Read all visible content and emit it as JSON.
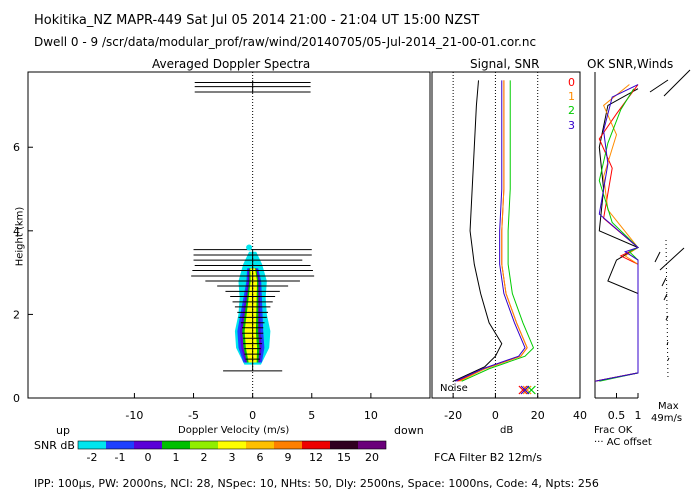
{
  "header": {
    "line1": "Hokitika_NZ  MAPR-449  Sat Jul 05 2014 21:00 - 21:04 UT 15:00 NZST",
    "line2": "Dwell  0 - 9   /scr/data/modular_prof/raw/wind/20140705/05-Jul-2014_21-00-01.cor.nc"
  },
  "footer": {
    "params": "IPP: 100μs,  PW: 2000ns,  NCI: 28,  NSpec: 10, NHts: 50,  Dly: 2500ns,  Space: 1000ns,  Code: 4,  Npts: 256",
    "filter": "FCA Filter B2 12m/s"
  },
  "chart_data": [
    {
      "type": "heatmap",
      "title": "Averaged Doppler Spectra",
      "xlabel": "Doppler Velocity (m/s)",
      "ylabel": "Height (km)",
      "xlim": [
        -19,
        15
      ],
      "ylim": [
        0,
        7.8
      ],
      "x_ticks": [
        -10,
        -5,
        0,
        5,
        10
      ],
      "y_ticks": [
        0,
        2,
        4,
        6
      ],
      "left_label": "up",
      "right_label": "down",
      "colorbar_label": "SNR dB",
      "colorbar_levels": [
        "-2",
        "-1",
        "0",
        "1",
        "2",
        "3",
        "6",
        "9",
        "12",
        "15",
        "20"
      ],
      "colorbar_colors": [
        "#00e5ee",
        "#1f3fff",
        "#5a00d8",
        "#00c000",
        "#90ee00",
        "#ffff00",
        "#ffc000",
        "#ff7f00",
        "#ee0000",
        "#300020",
        "#6a007a"
      ],
      "spectra_core": [
        {
          "h": 0.85,
          "center": 0.0,
          "halfwidth": 0.5
        },
        {
          "h": 1.2,
          "center": -0.1,
          "halfwidth": 0.7
        },
        {
          "h": 1.6,
          "center": -0.2,
          "halfwidth": 0.7
        },
        {
          "h": 2.0,
          "center": -0.1,
          "halfwidth": 0.6
        },
        {
          "h": 2.4,
          "center": 0.0,
          "halfwidth": 0.5
        },
        {
          "h": 2.8,
          "center": 0.1,
          "halfwidth": 0.4
        },
        {
          "h": 3.1,
          "center": 0.0,
          "halfwidth": 0.3
        }
      ],
      "spectra_outer": [
        {
          "h": 0.8,
          "halfwidth": 0.7
        },
        {
          "h": 1.2,
          "halfwidth": 1.4
        },
        {
          "h": 1.6,
          "halfwidth": 1.5
        },
        {
          "h": 2.0,
          "halfwidth": 1.2
        },
        {
          "h": 2.4,
          "halfwidth": 1.1
        },
        {
          "h": 2.8,
          "halfwidth": 1.2
        },
        {
          "h": 3.2,
          "halfwidth": 0.8
        },
        {
          "h": 3.5,
          "halfwidth": 0.3
        }
      ],
      "errorbars": [
        {
          "h": 7.55,
          "x": 0.0,
          "half": 4.9
        },
        {
          "h": 7.45,
          "x": 0.0,
          "half": 4.9
        },
        {
          "h": 7.32,
          "x": 0.0,
          "half": 4.9
        },
        {
          "h": 3.55,
          "x": 0.0,
          "half": 5.0
        },
        {
          "h": 3.42,
          "x": 0.0,
          "half": 5.0
        },
        {
          "h": 3.3,
          "x": -0.4,
          "half": 4.6
        },
        {
          "h": 3.17,
          "x": 0.0,
          "half": 4.9
        },
        {
          "h": 3.05,
          "x": 0.0,
          "half": 5.1
        },
        {
          "h": 2.92,
          "x": 0.0,
          "half": 5.2
        },
        {
          "h": 2.8,
          "x": 0.0,
          "half": 4.0
        },
        {
          "h": 2.68,
          "x": 0.0,
          "half": 3.0
        },
        {
          "h": 2.55,
          "x": 0.0,
          "half": 2.3
        },
        {
          "h": 2.43,
          "x": 0.0,
          "half": 1.9
        },
        {
          "h": 2.3,
          "x": 0.0,
          "half": 1.7
        },
        {
          "h": 2.18,
          "x": 0.0,
          "half": 1.5
        },
        {
          "h": 2.05,
          "x": 0.0,
          "half": 1.3
        },
        {
          "h": 1.93,
          "x": 0.0,
          "half": 1.2
        },
        {
          "h": 1.8,
          "x": 0.0,
          "half": 1.0
        },
        {
          "h": 1.68,
          "x": 0.0,
          "half": 0.9
        },
        {
          "h": 1.55,
          "x": 0.0,
          "half": 0.9
        },
        {
          "h": 1.43,
          "x": 0.0,
          "half": 0.8
        },
        {
          "h": 1.3,
          "x": 0.0,
          "half": 0.8
        },
        {
          "h": 1.18,
          "x": 0.0,
          "half": 0.7
        },
        {
          "h": 1.05,
          "x": 0.0,
          "half": 0.7
        },
        {
          "h": 0.93,
          "x": 0.0,
          "half": 0.6
        },
        {
          "h": 0.65,
          "x": 0.0,
          "half": 2.5
        }
      ],
      "peak_marker": {
        "x": -0.3,
        "h": 3.6
      }
    },
    {
      "type": "line",
      "title": "Signal, SNR",
      "xlabel": "dB",
      "xlim": [
        -30,
        40
      ],
      "ylim": [
        0,
        7.8
      ],
      "x_ticks": [
        -20,
        0,
        20,
        40
      ],
      "dotted_x": [
        -20,
        0,
        20
      ],
      "noise_label": "Noise",
      "series": [
        {
          "color": "#000000",
          "points": [
            [
              -20,
              0.4
            ],
            [
              -5,
              0.75
            ],
            [
              0,
              1.0
            ],
            [
              3,
              1.3
            ],
            [
              -3,
              1.8
            ],
            [
              -7,
              2.5
            ],
            [
              -10,
              3.2
            ],
            [
              -12,
              4.0
            ],
            [
              -11,
              5.0
            ],
            [
              -10,
              6.0
            ],
            [
              -9,
              7.0
            ],
            [
              -8,
              7.6
            ]
          ]
        },
        {
          "color": "#ff0000",
          "points": [
            [
              -18,
              0.4
            ],
            [
              -5,
              0.7
            ],
            [
              12,
              1.0
            ],
            [
              15,
              1.2
            ],
            [
              10,
              1.8
            ],
            [
              5,
              2.5
            ],
            [
              3,
              3.2
            ],
            [
              3,
              4.0
            ],
            [
              4,
              5.0
            ],
            [
              4,
              6.0
            ],
            [
              4,
              7.0
            ],
            [
              4,
              7.6
            ]
          ]
        },
        {
          "color": "#ff8c00",
          "points": [
            [
              -17,
              0.4
            ],
            [
              -5,
              0.7
            ],
            [
              12,
              1.0
            ],
            [
              15,
              1.2
            ],
            [
              10,
              1.8
            ],
            [
              5,
              2.5
            ],
            [
              3,
              3.2
            ],
            [
              3,
              4.0
            ],
            [
              4,
              5.0
            ],
            [
              4,
              6.0
            ],
            [
              4,
              7.0
            ],
            [
              4,
              7.6
            ]
          ]
        },
        {
          "color": "#00cc00",
          "points": [
            [
              -16,
              0.4
            ],
            [
              -3,
              0.7
            ],
            [
              14,
              1.0
            ],
            [
              18,
              1.2
            ],
            [
              13,
              1.8
            ],
            [
              8,
              2.5
            ],
            [
              6,
              3.2
            ],
            [
              6,
              4.0
            ],
            [
              7,
              5.0
            ],
            [
              7,
              6.0
            ],
            [
              7,
              7.0
            ],
            [
              7,
              7.6
            ]
          ]
        },
        {
          "color": "#3300cc",
          "points": [
            [
              -19,
              0.4
            ],
            [
              -6,
              0.7
            ],
            [
              11,
              1.0
            ],
            [
              14,
              1.2
            ],
            [
              9,
              1.8
            ],
            [
              4,
              2.5
            ],
            [
              2,
              3.2
            ],
            [
              2,
              4.0
            ],
            [
              3,
              5.0
            ],
            [
              3,
              6.0
            ],
            [
              3,
              7.0
            ],
            [
              3,
              7.6
            ]
          ]
        }
      ],
      "noise_marks": [
        {
          "x": 13,
          "color": "#ff0000"
        },
        {
          "x": 15,
          "color": "#ff8c00"
        },
        {
          "x": 17,
          "color": "#00cc00"
        },
        {
          "x": 14,
          "color": "#3300cc"
        }
      ]
    },
    {
      "type": "line",
      "title": "OK SNR,Winds",
      "xlim": [
        0,
        1
      ],
      "ylim": [
        0,
        7.8
      ],
      "x_ticks": [
        "0.5",
        "1"
      ],
      "beam_labels": [
        {
          "label": "0",
          "color": "#ff0000"
        },
        {
          "label": "1",
          "color": "#ff8c00"
        },
        {
          "label": "2",
          "color": "#00cc00"
        },
        {
          "label": "3",
          "color": "#3300cc"
        }
      ],
      "frac_label": "Frac OK",
      "offset_label": "··· AC offset",
      "max_label": "Max",
      "max_value": "49m/s",
      "series": [
        {
          "color": "#000000",
          "points": [
            [
              0,
              0.4
            ],
            [
              1,
              0.6
            ],
            [
              1,
              2.5
            ],
            [
              0.3,
              2.8
            ],
            [
              0.5,
              3.3
            ],
            [
              1,
              3.6
            ],
            [
              0.1,
              4.0
            ],
            [
              0.2,
              5.0
            ],
            [
              0.1,
              6.0
            ],
            [
              0.3,
              7.0
            ],
            [
              1,
              7.4
            ]
          ]
        },
        {
          "color": "#ff0000",
          "points": [
            [
              0,
              0.4
            ],
            [
              1,
              0.6
            ],
            [
              1,
              3.2
            ],
            [
              0.6,
              3.4
            ],
            [
              1,
              3.6
            ],
            [
              0.2,
              4.3
            ],
            [
              0.4,
              5.5
            ],
            [
              0.1,
              6.2
            ],
            [
              0.5,
              6.8
            ],
            [
              1,
              7.5
            ]
          ]
        },
        {
          "color": "#ff8c00",
          "points": [
            [
              0,
              0.4
            ],
            [
              1,
              0.6
            ],
            [
              1,
              3.2
            ],
            [
              0.7,
              3.4
            ],
            [
              1,
              3.6
            ],
            [
              0.3,
              4.5
            ],
            [
              0.2,
              5.3
            ],
            [
              0.5,
              6.3
            ],
            [
              0.2,
              7.0
            ],
            [
              0.8,
              7.5
            ]
          ]
        },
        {
          "color": "#00cc00",
          "points": [
            [
              0.1,
              0.4
            ],
            [
              1,
              0.6
            ],
            [
              1,
              3.3
            ],
            [
              0.8,
              3.5
            ],
            [
              1,
              3.6
            ],
            [
              0.4,
              4.2
            ],
            [
              0.1,
              5.2
            ],
            [
              0.3,
              6.1
            ],
            [
              0.6,
              6.9
            ],
            [
              0.9,
              7.4
            ]
          ]
        },
        {
          "color": "#3300cc",
          "points": [
            [
              0,
              0.4
            ],
            [
              1,
              0.6
            ],
            [
              1,
              3.3
            ],
            [
              0.7,
              3.5
            ],
            [
              1,
              3.6
            ],
            [
              0.1,
              4.4
            ],
            [
              0.3,
              5.6
            ],
            [
              0.2,
              6.4
            ],
            [
              0.4,
              7.2
            ],
            [
              1,
              7.5
            ]
          ]
        }
      ]
    }
  ]
}
